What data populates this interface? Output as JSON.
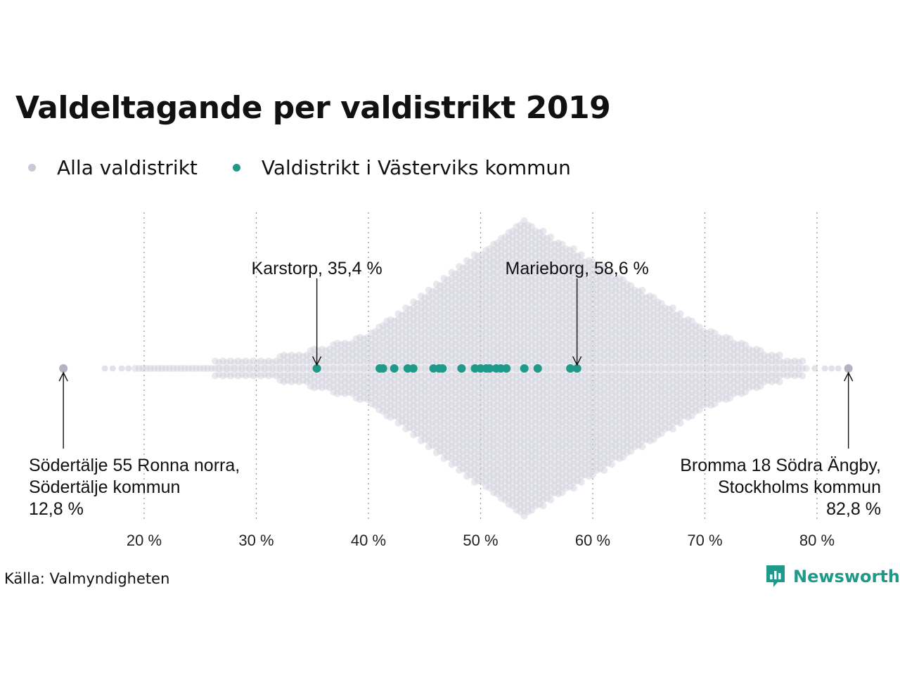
{
  "title": "Valdeltagande per valdistrikt 2019",
  "legend": {
    "all": "Alla valdistrikt",
    "highlight": "Valdistrikt i Västerviks kommun"
  },
  "source": "Källa: Valmyndigheten",
  "brand": "Newsworthy",
  "colors": {
    "all_points": "#c9c8d6",
    "highlight_points": "#1f9a8a",
    "gridline": "#9b9b9b",
    "annotation": "#111111"
  },
  "chart_data": {
    "type": "scatter",
    "subtype": "beeswarm",
    "x_axis": {
      "min": 12,
      "max": 84,
      "ticks": [
        20,
        30,
        40,
        50,
        60,
        70,
        80
      ],
      "tick_labels": [
        "20 %",
        "30 %",
        "40 %",
        "50 %",
        "60 %",
        "70 %",
        "80 %"
      ],
      "grid": true,
      "grid_style": "dotted"
    },
    "series": [
      {
        "name": "Alla valdistrikt",
        "color": "#c9c8d6",
        "distribution": "approx. normal, peak near 53.8 %",
        "min": 12.8,
        "max": 82.8
      },
      {
        "name": "Valdistrikt i Västerviks kommun",
        "color": "#1f9a8a",
        "values": [
          35.4,
          41.0,
          41.3,
          42.3,
          43.5,
          44.0,
          45.8,
          46.3,
          46.6,
          48.3,
          49.5,
          50.0,
          50.5,
          50.8,
          51.4,
          51.8,
          52.3,
          53.9,
          55.1,
          58.0,
          58.6
        ]
      }
    ],
    "annotations": [
      {
        "label": "Karstorp, 35,4 %",
        "x": 35.4,
        "side": "above"
      },
      {
        "label": "Marieborg, 58,6 %",
        "x": 58.6,
        "side": "above"
      },
      {
        "lines": [
          "Södertälje 55 Ronna norra,",
          "Södertälje kommun",
          "12,8 %"
        ],
        "x": 12.8,
        "side": "below",
        "align": "left"
      },
      {
        "lines": [
          "Bromma 18 Södra Ängby,",
          "Stockholms kommun",
          "82,8 %"
        ],
        "x": 82.8,
        "side": "below",
        "align": "right"
      }
    ]
  }
}
